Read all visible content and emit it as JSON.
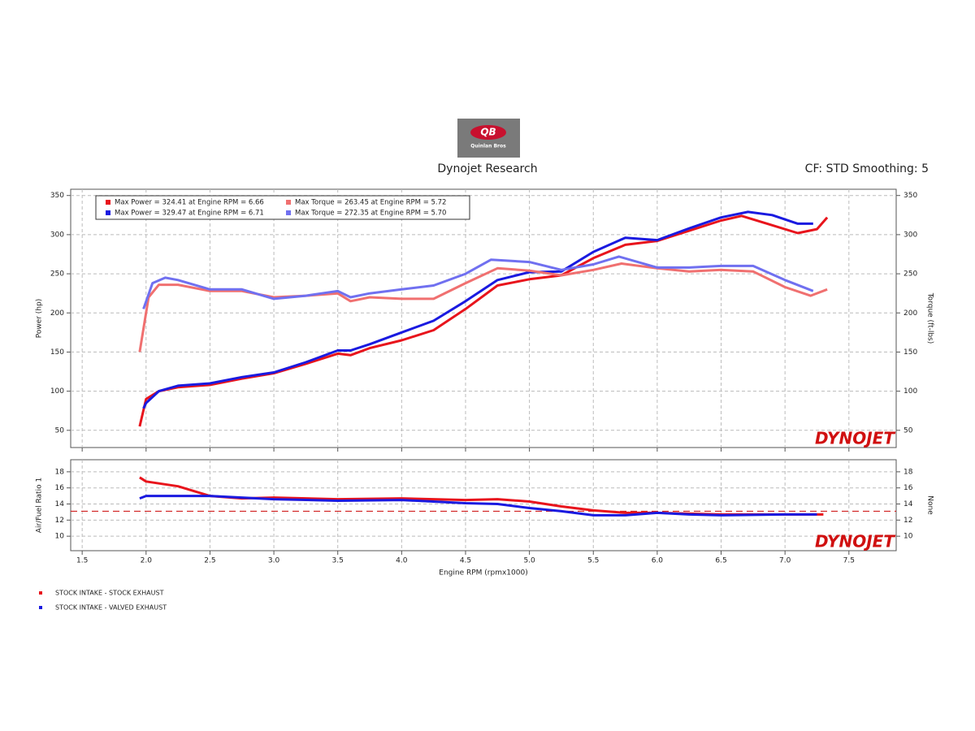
{
  "header": {
    "title": "Dynojet Research",
    "settings": "CF: STD Smoothing: 5",
    "logo": {
      "mark": "QB",
      "text": "Quinlan Bros"
    }
  },
  "chart_data": [
    {
      "type": "line",
      "y_label": "Power (hp)",
      "y2_label": "Torque (ft-lbs)",
      "watermark": "DYNOJET",
      "grid": true,
      "xlim": [
        1.41,
        7.87
      ],
      "ylim": [
        28,
        358
      ],
      "y2lim": [
        28,
        358
      ],
      "xticks": [
        1.5,
        {
          "value": 2,
          "label": "2.0"
        },
        2.5,
        {
          "value": 3,
          "label": "3.0"
        },
        3.5,
        {
          "value": 4,
          "label": "4.0"
        },
        4.5,
        {
          "value": 5,
          "label": "5.0"
        },
        5.5,
        {
          "value": 6,
          "label": "6.0"
        },
        6.5,
        {
          "value": 7,
          "label": "7.0"
        },
        7.5
      ],
      "yticks": [
        50,
        100,
        150,
        200,
        250,
        300,
        350
      ],
      "y2ticks": [
        50,
        100,
        150,
        200,
        250,
        300,
        350
      ],
      "series": [
        {
          "name": "Max Power = 324.41 at Engine RPM = 6.66",
          "color": "#e8141c",
          "x": [
            1.95,
            2.0,
            2.1,
            2.25,
            2.5,
            2.75,
            3.0,
            3.25,
            3.5,
            3.6,
            3.75,
            4.0,
            4.25,
            4.5,
            4.75,
            5.0,
            5.25,
            5.5,
            5.75,
            6.0,
            6.25,
            6.5,
            6.66,
            6.9,
            7.1,
            7.25,
            7.33
          ],
          "values": [
            55,
            90,
            100,
            105,
            108,
            116,
            123,
            135,
            148,
            146,
            155,
            165,
            178,
            205,
            235,
            243,
            248,
            270,
            287,
            292,
            305,
            318,
            324,
            312,
            302,
            307,
            322
          ]
        },
        {
          "name": "Max Power = 329.47 at Engine RPM = 6.71",
          "color": "#1a1ae0",
          "x": [
            1.98,
            2.0,
            2.1,
            2.25,
            2.5,
            2.75,
            3.0,
            3.25,
            3.5,
            3.6,
            3.75,
            4.0,
            4.25,
            4.5,
            4.75,
            5.0,
            5.25,
            5.5,
            5.75,
            6.0,
            6.25,
            6.5,
            6.71,
            6.9,
            7.1,
            7.22
          ],
          "values": [
            78,
            85,
            100,
            107,
            110,
            118,
            124,
            137,
            152,
            152,
            160,
            175,
            190,
            215,
            242,
            252,
            253,
            278,
            296,
            293,
            308,
            322,
            329,
            325,
            314,
            314
          ]
        },
        {
          "name": "Max Torque = 263.45 at Engine RPM = 5.72",
          "color": "#f07070",
          "x": [
            1.95,
            2.02,
            2.1,
            2.25,
            2.5,
            2.75,
            3.0,
            3.25,
            3.5,
            3.6,
            3.75,
            4.0,
            4.25,
            4.5,
            4.75,
            5.0,
            5.25,
            5.5,
            5.72,
            6.0,
            6.25,
            6.5,
            6.75,
            7.0,
            7.2,
            7.33
          ],
          "values": [
            150,
            220,
            236,
            236,
            228,
            228,
            220,
            222,
            225,
            215,
            220,
            218,
            218,
            238,
            257,
            254,
            248,
            255,
            263,
            257,
            253,
            255,
            253,
            233,
            222,
            230
          ]
        },
        {
          "name": "Max Torque = 272.35 at Engine RPM = 5.70",
          "color": "#7070f0",
          "x": [
            1.98,
            2.05,
            2.15,
            2.25,
            2.5,
            2.75,
            3.0,
            3.25,
            3.5,
            3.6,
            3.75,
            4.0,
            4.25,
            4.5,
            4.7,
            5.0,
            5.25,
            5.5,
            5.7,
            6.0,
            6.25,
            6.5,
            6.75,
            7.0,
            7.22
          ],
          "values": [
            205,
            238,
            245,
            242,
            230,
            230,
            218,
            222,
            228,
            220,
            225,
            230,
            235,
            250,
            268,
            265,
            255,
            262,
            272,
            258,
            258,
            260,
            260,
            242,
            228
          ]
        }
      ]
    },
    {
      "type": "line",
      "y_label": "Air/Fuel Ratio 1",
      "y2_label": "None",
      "x_label": "Engine RPM (rpmx1000)",
      "watermark": "DYNOJET",
      "grid": true,
      "xlim": [
        1.41,
        7.87
      ],
      "ylim": [
        8.2,
        19.5
      ],
      "y2lim": [
        8.2,
        19.5
      ],
      "xticks": [
        1.5,
        {
          "value": 2,
          "label": "2.0"
        },
        2.5,
        {
          "value": 3,
          "label": "3.0"
        },
        3.5,
        {
          "value": 4,
          "label": "4.0"
        },
        4.5,
        {
          "value": 5,
          "label": "5.0"
        },
        5.5,
        {
          "value": 6,
          "label": "6.0"
        },
        6.5,
        {
          "value": 7,
          "label": "7.0"
        },
        7.5
      ],
      "yticks": [
        10,
        12,
        14,
        16,
        18
      ],
      "y2ticks": [
        10,
        12,
        14,
        16,
        18
      ],
      "reference_line": {
        "value": 13.1,
        "color": "#d02020"
      },
      "series": [
        {
          "color": "#e8141c",
          "x": [
            1.95,
            2.0,
            2.25,
            2.5,
            2.75,
            3.0,
            3.5,
            4.0,
            4.5,
            4.75,
            5.0,
            5.25,
            5.5,
            5.75,
            6.0,
            6.5,
            7.0,
            7.3
          ],
          "values": [
            17.3,
            16.8,
            16.2,
            15.0,
            14.7,
            14.8,
            14.6,
            14.7,
            14.5,
            14.6,
            14.3,
            13.7,
            13.2,
            12.9,
            12.9,
            12.7,
            12.7,
            12.7
          ]
        },
        {
          "color": "#1a1ae0",
          "x": [
            1.95,
            2.0,
            2.25,
            2.5,
            3.0,
            3.5,
            4.0,
            4.5,
            4.75,
            5.0,
            5.25,
            5.5,
            5.75,
            6.0,
            6.25,
            6.5,
            7.0,
            7.25
          ],
          "values": [
            14.7,
            15.0,
            15.0,
            15.0,
            14.6,
            14.4,
            14.5,
            14.1,
            14.0,
            13.5,
            13.1,
            12.6,
            12.6,
            12.9,
            12.7,
            12.6,
            12.7,
            12.7
          ]
        }
      ]
    }
  ],
  "legend_runs": [
    {
      "name": "STOCK INTAKE - STOCK EXHAUST",
      "color": "#e8141c"
    },
    {
      "name": "STOCK INTAKE - VALVED EXHAUST",
      "color": "#1a1ae0"
    }
  ]
}
